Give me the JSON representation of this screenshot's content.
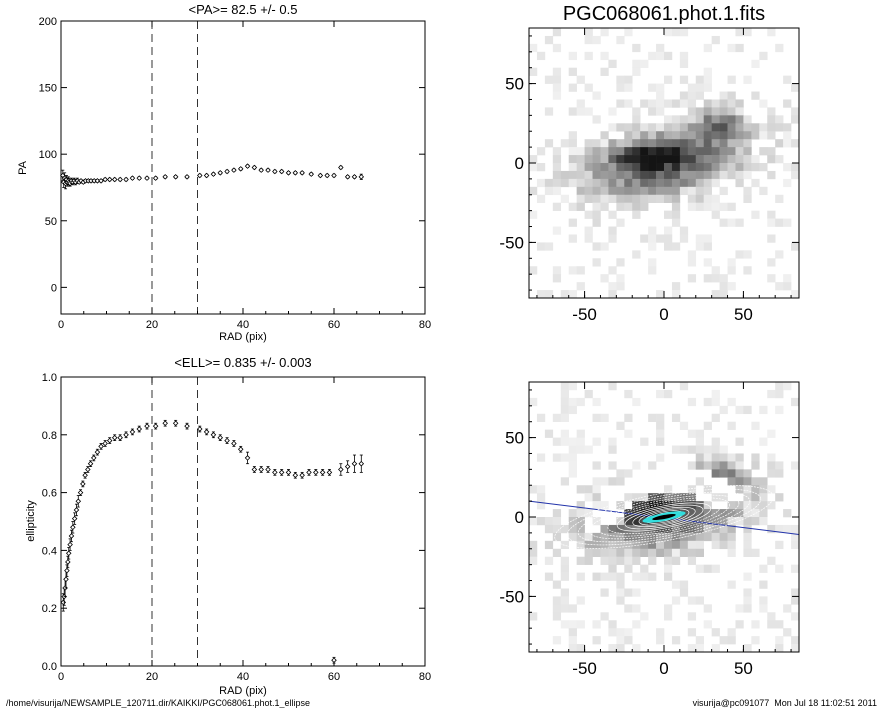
{
  "charts": [
    {
      "type": "scatter",
      "title": "<PA>=  82.5 +/-   0.5",
      "xlabel": "RAD (pix)",
      "ylabel": "PA",
      "xlim": [
        0,
        80
      ],
      "ylim": [
        -20,
        200
      ],
      "xticks": [
        0,
        20,
        40,
        60,
        80
      ],
      "yticks": [
        0,
        50,
        100,
        150,
        200
      ],
      "vlines": [
        20,
        30
      ],
      "x": [
        0.4,
        0.6,
        0.8,
        1.0,
        1.2,
        1.4,
        1.6,
        1.8,
        2.0,
        2.3,
        2.6,
        2.9,
        3.2,
        3.6,
        4.0,
        4.4,
        4.9,
        5.4,
        6.0,
        6.6,
        7.3,
        8.0,
        8.8,
        9.7,
        10.7,
        11.8,
        13.0,
        14.3,
        15.7,
        17.2,
        18.9,
        20.8,
        22.9,
        25.2,
        27.7,
        30.5,
        32.0,
        33.5,
        35.0,
        36.5,
        38.0,
        39.5,
        41.0,
        42.5,
        44.0,
        45.5,
        47.0,
        48.5,
        50.0,
        51.5,
        53.0,
        55.0,
        57.0,
        58.5,
        60.0,
        61.5,
        63.0,
        64.5,
        66.0
      ],
      "y": [
        84,
        79,
        82,
        78,
        81,
        79,
        80,
        79,
        78,
        80,
        79,
        80,
        79,
        80,
        79,
        80,
        79,
        80,
        80,
        80,
        80,
        80,
        80,
        81,
        81,
        81,
        81,
        81,
        82,
        82,
        82,
        82,
        83,
        83,
        83,
        84,
        84,
        85,
        86,
        87,
        88,
        89,
        91,
        90,
        88,
        88,
        87,
        87,
        86,
        86,
        86,
        85,
        84,
        84,
        84,
        90,
        83,
        83,
        83
      ],
      "errors": [
        4,
        4,
        4,
        4,
        3,
        3,
        3,
        3,
        2,
        2,
        2,
        2,
        2,
        2,
        1,
        1,
        1,
        1,
        1,
        1,
        1,
        1,
        1,
        1,
        1,
        1,
        1,
        1,
        1,
        1,
        1,
        1,
        1,
        1,
        1,
        1,
        1,
        1,
        1,
        1,
        1,
        1,
        1,
        1,
        1,
        1,
        1,
        1,
        1,
        1,
        1,
        1,
        1,
        1,
        1,
        1,
        1,
        1,
        2
      ]
    },
    {
      "type": "scatter",
      "title": "<ELL>= 0.835 +/-   0.003",
      "xlabel": "RAD (pix)",
      "ylabel": "ellipticity",
      "xlim": [
        0,
        80
      ],
      "ylim": [
        0,
        1
      ],
      "xticks": [
        0,
        20,
        40,
        60,
        80
      ],
      "yticks": [
        "0.0",
        "0.2",
        "0.4",
        "0.6",
        "0.8",
        "1.0"
      ],
      "vlines": [
        20,
        30
      ],
      "x": [
        0.5,
        0.7,
        0.9,
        1.1,
        1.3,
        1.5,
        1.7,
        2.0,
        2.3,
        2.6,
        3.0,
        3.4,
        3.8,
        4.3,
        4.8,
        5.3,
        5.9,
        6.5,
        7.2,
        8.0,
        8.8,
        9.7,
        10.7,
        11.8,
        13.0,
        14.3,
        15.7,
        17.2,
        18.9,
        20.8,
        22.9,
        25.2,
        27.7,
        30.5,
        32.0,
        33.5,
        35.0,
        36.5,
        38.0,
        39.5,
        41.0,
        42.5,
        44.0,
        45.5,
        47.0,
        48.5,
        50.0,
        51.5,
        53.0,
        54.5,
        56.0,
        57.5,
        59.0,
        60.0,
        61.5,
        63.0,
        64.5,
        66.0
      ],
      "y": [
        0.22,
        0.24,
        0.27,
        0.3,
        0.33,
        0.36,
        0.39,
        0.42,
        0.45,
        0.48,
        0.51,
        0.54,
        0.57,
        0.6,
        0.63,
        0.66,
        0.68,
        0.7,
        0.72,
        0.74,
        0.76,
        0.77,
        0.78,
        0.79,
        0.79,
        0.8,
        0.81,
        0.82,
        0.83,
        0.83,
        0.84,
        0.84,
        0.83,
        0.82,
        0.81,
        0.8,
        0.79,
        0.78,
        0.77,
        0.75,
        0.72,
        0.68,
        0.68,
        0.68,
        0.67,
        0.67,
        0.67,
        0.66,
        0.66,
        0.67,
        0.67,
        0.67,
        0.67,
        0.02,
        0.68,
        0.69,
        0.7,
        0.7
      ],
      "errors": [
        0.03,
        0.03,
        0.03,
        0.03,
        0.02,
        0.02,
        0.02,
        0.02,
        0.02,
        0.02,
        0.02,
        0.02,
        0.02,
        0.01,
        0.01,
        0.01,
        0.01,
        0.01,
        0.01,
        0.01,
        0.01,
        0.01,
        0.01,
        0.01,
        0.01,
        0.01,
        0.01,
        0.01,
        0.01,
        0.01,
        0.01,
        0.01,
        0.01,
        0.01,
        0.01,
        0.01,
        0.01,
        0.01,
        0.01,
        0.01,
        0.02,
        0.01,
        0.01,
        0.01,
        0.01,
        0.01,
        0.01,
        0.01,
        0.01,
        0.01,
        0.01,
        0.01,
        0.01,
        0.01,
        0.02,
        0.02,
        0.03,
        0.03
      ]
    }
  ],
  "images": [
    {
      "title": "PGC068061.phot.1.fits",
      "xticks": [
        "-50",
        "0",
        "50"
      ],
      "yticks": [
        "50",
        "0",
        "-50"
      ],
      "xlim": [
        -85,
        85
      ],
      "ylim": [
        -85,
        85
      ]
    },
    {
      "title": "",
      "xticks": [
        "-50",
        "0",
        "50"
      ],
      "yticks": [
        "50",
        "0",
        "-50"
      ],
      "xlim": [
        -85,
        85
      ],
      "ylim": [
        -85,
        85
      ],
      "pa_line_color": "#2233aa",
      "contour_color": "#ffffff",
      "core_color": "#33dddd"
    }
  ],
  "footer": {
    "left": "/home/visurija/NEWSAMPLE_120711.dir/KAIKKI/PGC068061.phot.1_ellipse",
    "right": "visurija@pc091077  Mon Jul 18 11:02:51 2011"
  }
}
